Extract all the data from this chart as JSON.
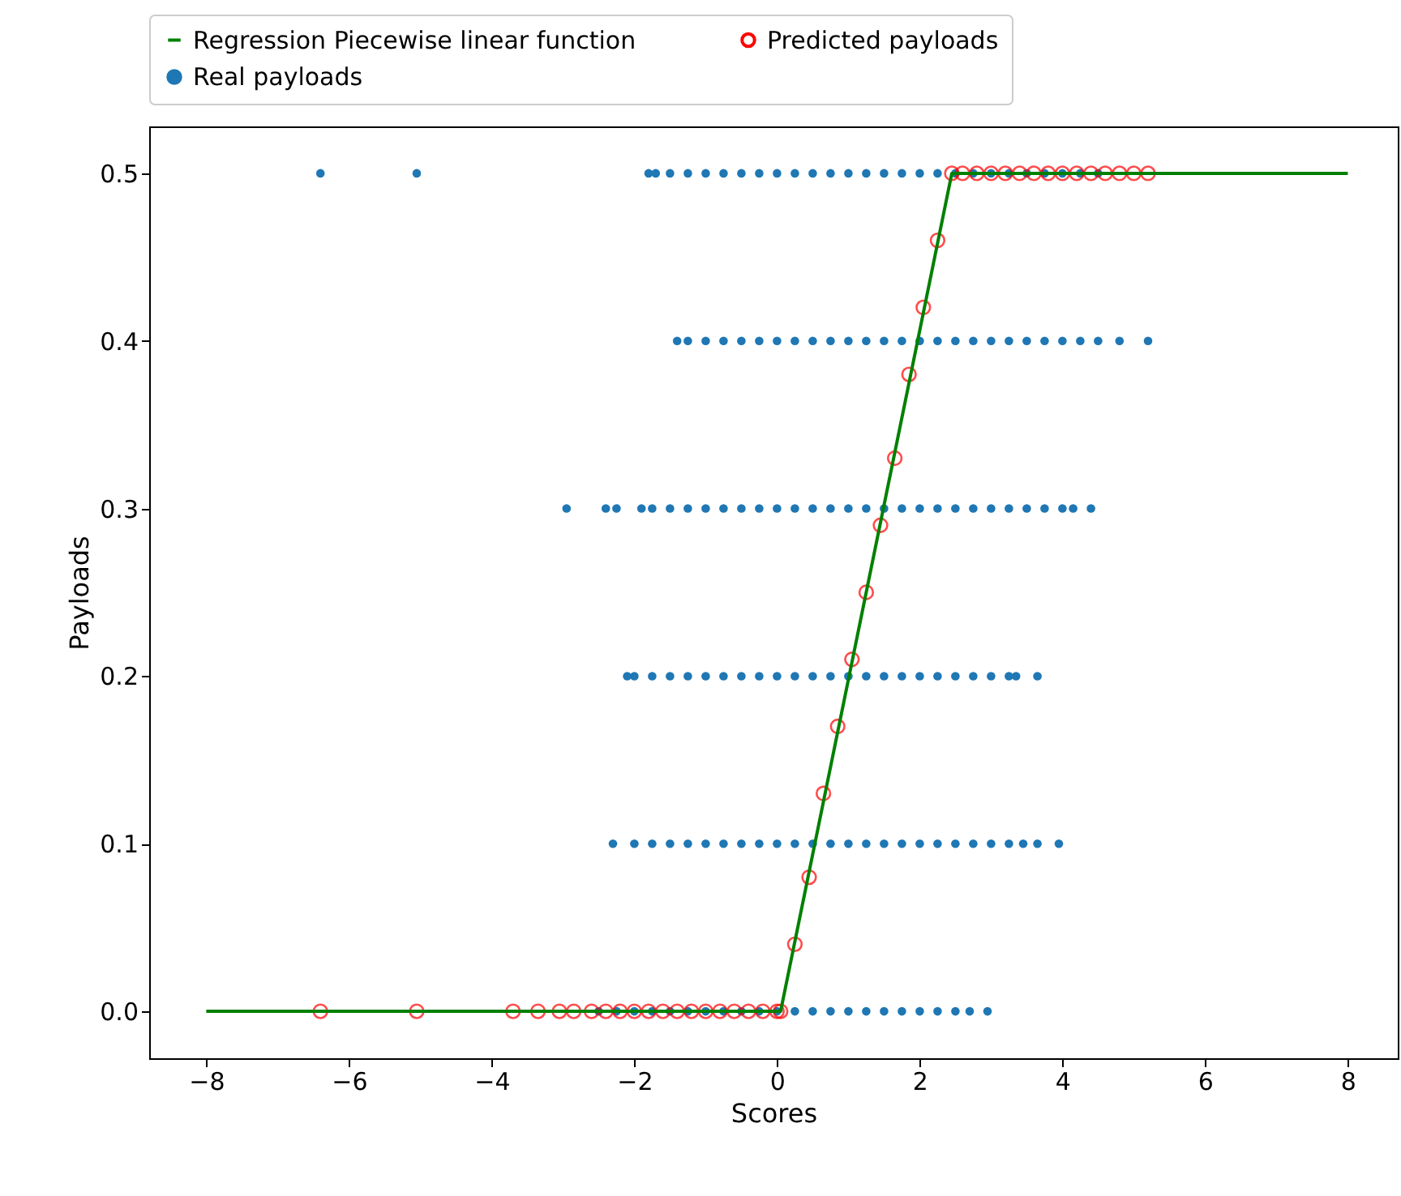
{
  "chart_data": {
    "type": "scatter",
    "xlabel": "Scores",
    "ylabel": "Payloads",
    "legend": "top",
    "grid": false,
    "xlim": [
      -8.8,
      8.7
    ],
    "ylim": [
      -0.028,
      0.528
    ],
    "xticks": [
      {
        "value": -8,
        "label": "−8"
      },
      {
        "value": -6,
        "label": "−6"
      },
      {
        "value": -4,
        "label": "−4"
      },
      {
        "value": -2,
        "label": "−2"
      },
      0,
      2,
      4,
      6,
      8
    ],
    "yticks": [
      {
        "value": 0,
        "label": "0.0"
      },
      {
        "value": 0.1,
        "label": "0.1"
      },
      {
        "value": 0.2,
        "label": "0.2"
      },
      {
        "value": 0.3,
        "label": "0.3"
      },
      {
        "value": 0.4,
        "label": "0.4"
      },
      {
        "value": 0.5,
        "label": "0.5"
      }
    ],
    "series": [
      {
        "name": "Regression Piecewise linear function",
        "type": "line",
        "color": "#008000",
        "x": [
          -8,
          0.05,
          2.45,
          8
        ],
        "values": [
          0,
          0,
          0.5,
          0.5
        ]
      },
      {
        "name": "Predicted payloads",
        "marker": "circle",
        "color": "#ff0000",
        "x": [
          -6.4,
          -5.05,
          -3.7,
          -3.35,
          -3.05,
          -2.85,
          -2.6,
          -2.4,
          -2.2,
          -2,
          -1.8,
          -1.6,
          -1.4,
          -1.2,
          -1,
          -0.8,
          -0.6,
          -0.4,
          -0.2,
          0,
          0.05,
          0.25,
          0.45,
          0.65,
          0.85,
          1.05,
          1.25,
          1.45,
          1.65,
          1.85,
          2.05,
          2.25,
          2.45,
          2.6,
          2.8,
          3,
          3.2,
          3.4,
          3.6,
          3.8,
          4,
          4.2,
          4.4,
          4.6,
          4.8,
          5,
          5.2
        ],
        "values": [
          0,
          0,
          0,
          0,
          0,
          0,
          0,
          0,
          0,
          0,
          0,
          0,
          0,
          0,
          0,
          0,
          0,
          0,
          0,
          0,
          0,
          0.04,
          0.08,
          0.13,
          0.17,
          0.21,
          0.25,
          0.29,
          0.33,
          0.38,
          0.42,
          0.46,
          0.5,
          0.5,
          0.5,
          0.5,
          0.5,
          0.5,
          0.5,
          0.5,
          0.5,
          0.5,
          0.5,
          0.5,
          0.5,
          0.5,
          0.5
        ]
      },
      {
        "name": "Real payloads",
        "marker": "circle",
        "color": "#1f77b4",
        "x": [
          -6.4,
          -5.05,
          -1.8,
          -1.7,
          -1.5,
          -1.25,
          -1,
          -0.75,
          -0.5,
          -0.25,
          0,
          0.25,
          0.5,
          0.75,
          1,
          1.25,
          1.5,
          1.75,
          2,
          2.25,
          2.5,
          2.75,
          3,
          3.25,
          3.5,
          3.75,
          4,
          4.25,
          4.5,
          -1.4,
          -1.25,
          -1,
          -0.75,
          -0.5,
          -0.25,
          0,
          0.25,
          0.5,
          0.75,
          1,
          1.25,
          1.5,
          1.75,
          2,
          2.25,
          2.5,
          2.75,
          3,
          3.25,
          3.5,
          3.75,
          4,
          4.25,
          4.5,
          4.8,
          5.2,
          -2.95,
          -2.4,
          -2.25,
          -1.9,
          -1.75,
          -1.5,
          -1.25,
          -1,
          -0.75,
          -0.5,
          -0.25,
          0,
          0.25,
          0.5,
          0.75,
          1,
          1.25,
          1.5,
          1.75,
          2,
          2.25,
          2.5,
          2.75,
          3,
          3.25,
          3.5,
          3.75,
          4,
          4.15,
          4.4,
          -2.1,
          -2,
          -1.75,
          -1.5,
          -1.25,
          -1,
          -0.75,
          -0.5,
          -0.25,
          0,
          0.25,
          0.5,
          0.75,
          1,
          1.25,
          1.5,
          1.75,
          2,
          2.25,
          2.5,
          2.75,
          3,
          3.25,
          3.35,
          3.65,
          -2.3,
          -2,
          -1.75,
          -1.5,
          -1.25,
          -1,
          -0.75,
          -0.5,
          -0.25,
          0,
          0.25,
          0.5,
          0.75,
          1,
          1.25,
          1.5,
          1.75,
          2,
          2.25,
          2.5,
          2.75,
          3,
          3.25,
          3.45,
          3.65,
          3.95,
          -2.5,
          -2.25,
          -2,
          -1.75,
          -1.5,
          -1.25,
          -1,
          -0.75,
          -0.5,
          -0.25,
          0,
          0.25,
          0.5,
          0.75,
          1,
          1.25,
          1.5,
          1.75,
          2,
          2.25,
          2.5,
          2.7,
          2.95
        ],
        "values": [
          0.5,
          0.5,
          0.5,
          0.5,
          0.5,
          0.5,
          0.5,
          0.5,
          0.5,
          0.5,
          0.5,
          0.5,
          0.5,
          0.5,
          0.5,
          0.5,
          0.5,
          0.5,
          0.5,
          0.5,
          0.5,
          0.5,
          0.5,
          0.5,
          0.5,
          0.5,
          0.5,
          0.5,
          0.5,
          0.4,
          0.4,
          0.4,
          0.4,
          0.4,
          0.4,
          0.4,
          0.4,
          0.4,
          0.4,
          0.4,
          0.4,
          0.4,
          0.4,
          0.4,
          0.4,
          0.4,
          0.4,
          0.4,
          0.4,
          0.4,
          0.4,
          0.4,
          0.4,
          0.4,
          0.4,
          0.4,
          0.3,
          0.3,
          0.3,
          0.3,
          0.3,
          0.3,
          0.3,
          0.3,
          0.3,
          0.3,
          0.3,
          0.3,
          0.3,
          0.3,
          0.3,
          0.3,
          0.3,
          0.3,
          0.3,
          0.3,
          0.3,
          0.3,
          0.3,
          0.3,
          0.3,
          0.3,
          0.3,
          0.3,
          0.3,
          0.3,
          0.2,
          0.2,
          0.2,
          0.2,
          0.2,
          0.2,
          0.2,
          0.2,
          0.2,
          0.2,
          0.2,
          0.2,
          0.2,
          0.2,
          0.2,
          0.2,
          0.2,
          0.2,
          0.2,
          0.2,
          0.2,
          0.2,
          0.2,
          0.2,
          0.2,
          0.1,
          0.1,
          0.1,
          0.1,
          0.1,
          0.1,
          0.1,
          0.1,
          0.1,
          0.1,
          0.1,
          0.1,
          0.1,
          0.1,
          0.1,
          0.1,
          0.1,
          0.1,
          0.1,
          0.1,
          0.1,
          0.1,
          0.1,
          0.1,
          0.1,
          0.1,
          0,
          0,
          0,
          0,
          0,
          0,
          0,
          0,
          0,
          0,
          0,
          0,
          0,
          0,
          0,
          0,
          0,
          0,
          0,
          0,
          0,
          0,
          0
        ]
      }
    ]
  }
}
